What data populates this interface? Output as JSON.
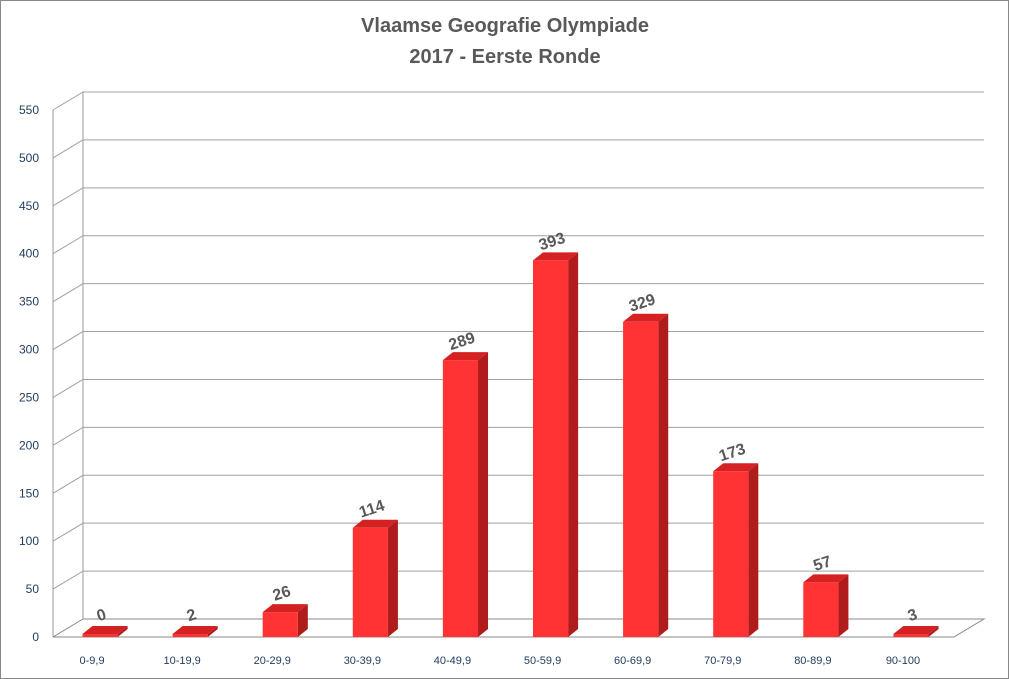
{
  "chart_data": {
    "type": "bar",
    "title": [
      "Vlaamse Geografie Olympiade",
      "2017 - Eerste Ronde"
    ],
    "xlabel": "",
    "ylabel": "",
    "categories": [
      "0-9,9",
      "10-19,9",
      "20-29,9",
      "30-39,9",
      "40-49,9",
      "50-59,9",
      "60-69,9",
      "70-79,9",
      "80-89,9",
      "90-100"
    ],
    "values": [
      0,
      2,
      26,
      114,
      289,
      393,
      329,
      173,
      57,
      3
    ],
    "ylim": [
      0,
      550
    ],
    "yticks": [
      0,
      50,
      100,
      150,
      200,
      250,
      300,
      350,
      400,
      450,
      500,
      550
    ],
    "grid": true,
    "legend": "none",
    "style": "3d",
    "colors": {
      "bar_front": "#ff3333",
      "bar_side": "#b01c1c",
      "bar_top": "#d42222",
      "label": "#595959"
    }
  }
}
